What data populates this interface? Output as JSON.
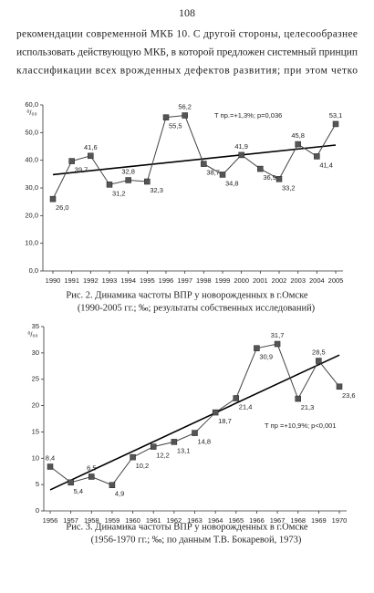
{
  "page_number": "108",
  "text_lines": [
    "рекомендации современной МКБ 10. С другой стороны, целесообразнее",
    "использовать действующую МКБ, в которой предложен системный принцип",
    "классификации всех врожденных дефектов развития; при этом четко"
  ],
  "chart_data": [
    {
      "type": "line",
      "y_label": "⁰/₀₀",
      "annotation": "Т пр.=+1,3%; р=0,036",
      "categories": [
        "1990",
        "1991",
        "1992",
        "1993",
        "1994",
        "1995",
        "1996",
        "1997",
        "1998",
        "1999",
        "2000",
        "2001",
        "2002",
        "2003",
        "2004",
        "2005"
      ],
      "values": [
        26.0,
        39.7,
        41.6,
        31.2,
        32.8,
        32.3,
        55.5,
        56.2,
        38.7,
        34.8,
        41.9,
        36.9,
        33.2,
        45.8,
        41.4,
        53.1
      ],
      "value_labels": [
        "26,0",
        "39,7",
        "41,6",
        "31,2",
        "32,8",
        "32,3",
        "55,5",
        "56,2",
        "38,7",
        "34,8",
        "41,9",
        "36,9",
        "33,2",
        "45,8",
        "41,4",
        "53,1"
      ],
      "trend": [
        34.8,
        45.5
      ],
      "color": "#555555",
      "grid": false,
      "ylim": [
        0,
        60
      ],
      "yticks": [
        {
          "value": 0,
          "label": "0,0"
        },
        {
          "value": 10,
          "label": "10,0"
        },
        {
          "value": 20,
          "label": "20,0"
        },
        {
          "value": 30,
          "label": "30,0"
        },
        {
          "value": 40,
          "label": "40,0"
        },
        {
          "value": 50,
          "label": "50,0"
        },
        {
          "value": 60,
          "label": "60,0"
        }
      ],
      "caption": [
        "Рис. 2. Динамика частоты ВПР у новорожденных в г.Омске",
        "(1990-2005 гг.; ‰; результаты собственных исследований)"
      ]
    },
    {
      "type": "line",
      "y_label": "⁰/₀₀",
      "annotation": "Т пр =+10,9%; р<0,001",
      "categories": [
        "1956",
        "1957",
        "1958",
        "1959",
        "1960",
        "1961",
        "1962",
        "1963",
        "1964",
        "1965",
        "1966",
        "1967",
        "1968",
        "1969",
        "1970"
      ],
      "values": [
        8.4,
        5.4,
        6.5,
        4.9,
        10.2,
        12.2,
        13.1,
        14.8,
        18.7,
        21.4,
        30.9,
        31.7,
        21.3,
        28.5,
        23.6
      ],
      "value_labels": [
        "8,4",
        "5,4",
        "6,5",
        "4,9",
        "10,2",
        "12,2",
        "13,1",
        "14,8",
        "18,7",
        "21,4",
        "30,9",
        "31,7",
        "21,3",
        "28,5",
        "23,6"
      ],
      "trend": [
        4.0,
        29.6
      ],
      "color": "#555555",
      "grid": false,
      "ylim": [
        0,
        35
      ],
      "yticks": [
        0,
        5,
        10,
        15,
        20,
        25,
        30,
        35
      ],
      "caption": [
        "Рис. 3. Динамика частоты ВПР у новорожденных в г.Омске",
        "(1956-1970 гг.; ‰; по данным Т.В. Бокаревой, 1973)"
      ]
    }
  ]
}
